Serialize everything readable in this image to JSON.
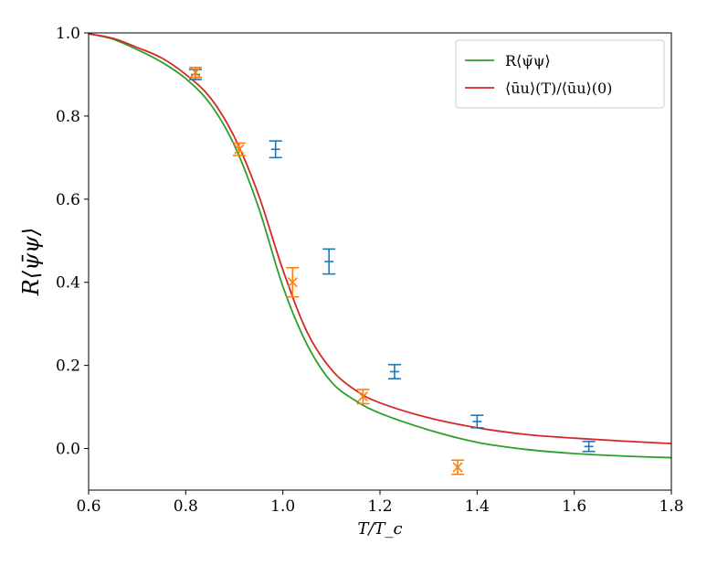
{
  "chart_data": {
    "type": "line",
    "xlabel": "T/T_c",
    "ylabel": "R⟨ψ̄ψ⟩",
    "xlim": [
      0.6,
      1.8
    ],
    "ylim": [
      -0.1,
      1.0
    ],
    "xticks": [
      "0.6",
      "0.8",
      "1.0",
      "1.2",
      "1.4",
      "1.6",
      "1.8"
    ],
    "yticks": [
      "0.0",
      "0.2",
      "0.4",
      "0.6",
      "0.8",
      "1.0"
    ],
    "grid": false,
    "legend_position": "top-right",
    "series": [
      {
        "name": "R⟨ψ̄ψ⟩",
        "kind": "line",
        "color": "#2ca02c",
        "x": [
          0.6,
          0.65,
          0.7,
          0.75,
          0.8,
          0.85,
          0.9,
          0.95,
          1.0,
          1.05,
          1.1,
          1.15,
          1.2,
          1.3,
          1.4,
          1.5,
          1.6,
          1.7,
          1.8
        ],
        "y": [
          0.998,
          0.985,
          0.96,
          0.93,
          0.89,
          0.83,
          0.73,
          0.58,
          0.39,
          0.25,
          0.16,
          0.115,
          0.085,
          0.045,
          0.015,
          -0.002,
          -0.012,
          -0.018,
          -0.022
        ]
      },
      {
        "name": "⟨ūu⟩(T)/⟨ūu⟩(0)",
        "kind": "line",
        "color": "#d62728",
        "x": [
          0.6,
          0.65,
          0.7,
          0.75,
          0.8,
          0.85,
          0.9,
          0.95,
          1.0,
          1.05,
          1.1,
          1.15,
          1.2,
          1.3,
          1.4,
          1.5,
          1.6,
          1.7,
          1.8
        ],
        "y": [
          0.998,
          0.987,
          0.965,
          0.94,
          0.9,
          0.845,
          0.75,
          0.61,
          0.43,
          0.28,
          0.19,
          0.14,
          0.11,
          0.074,
          0.05,
          0.034,
          0.025,
          0.018,
          0.012
        ]
      },
      {
        "kind": "errorbar",
        "marker": "plus",
        "color": "#1f77b4",
        "x": [
          0.82,
          0.985,
          1.095,
          1.23,
          1.4,
          1.63
        ],
        "y": [
          0.9,
          0.72,
          0.45,
          0.185,
          0.065,
          0.005
        ],
        "yerr": [
          0.012,
          0.02,
          0.03,
          0.017,
          0.015,
          0.012
        ]
      },
      {
        "kind": "errorbar",
        "marker": "x",
        "color": "#ff7f0e",
        "x": [
          0.82,
          0.91,
          1.02,
          1.165,
          1.36
        ],
        "y": [
          0.905,
          0.72,
          0.4,
          0.125,
          -0.045
        ],
        "yerr": [
          0.012,
          0.015,
          0.035,
          0.017,
          0.017
        ]
      }
    ]
  }
}
